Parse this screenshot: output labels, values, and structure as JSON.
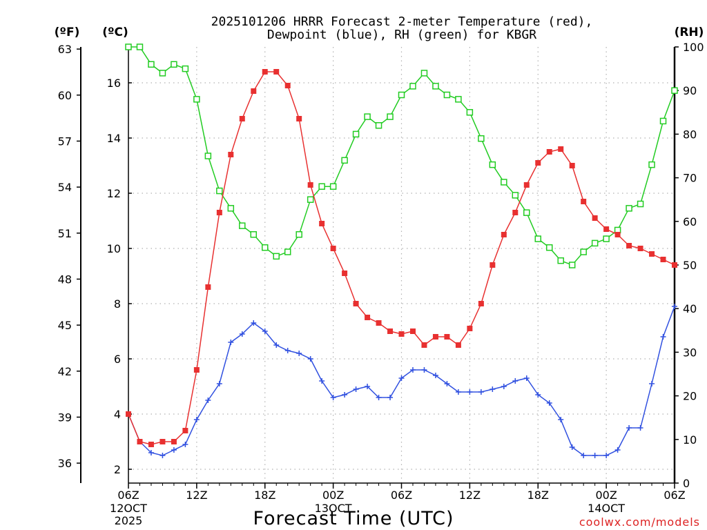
{
  "chart_data": {
    "type": "line",
    "title_line1": "2025101206 HRRR Forecast 2-meter Temperature (red),",
    "title_line2": "Dewpoint (blue), RH (green) for KBGR",
    "xlabel": "Forecast Time (UTC)",
    "credit": "coolwx.com/models",
    "unit_f": "(ºF)",
    "unit_c": "(ºC)",
    "unit_rh": "(RH)",
    "y_c_range": [
      1.5,
      17.3
    ],
    "y_rh_range": [
      0,
      100
    ],
    "f_ticks": [
      36,
      39,
      42,
      45,
      48,
      51,
      54,
      57,
      60,
      63
    ],
    "c_ticks": [
      2,
      4,
      6,
      8,
      10,
      12,
      14,
      16
    ],
    "rh_ticks": [
      0,
      10,
      20,
      30,
      40,
      50,
      60,
      70,
      80,
      90,
      100
    ],
    "x_ticks": [
      {
        "hour": 0,
        "label": "06Z",
        "sub1": "12OCT",
        "sub2": "2025"
      },
      {
        "hour": 6,
        "label": "12Z",
        "sub1": "",
        "sub2": ""
      },
      {
        "hour": 12,
        "label": "18Z",
        "sub1": "",
        "sub2": ""
      },
      {
        "hour": 18,
        "label": "00Z",
        "sub1": "13OCT",
        "sub2": ""
      },
      {
        "hour": 24,
        "label": "06Z",
        "sub1": "",
        "sub2": ""
      },
      {
        "hour": 30,
        "label": "12Z",
        "sub1": "",
        "sub2": ""
      },
      {
        "hour": 36,
        "label": "18Z",
        "sub1": "",
        "sub2": ""
      },
      {
        "hour": 42,
        "label": "00Z",
        "sub1": "14OCT",
        "sub2": ""
      },
      {
        "hour": 48,
        "label": "06Z",
        "sub1": "",
        "sub2": ""
      }
    ],
    "series": [
      {
        "name": "Temperature",
        "unit": "C",
        "axis": "left",
        "color": "#e83030",
        "marker": "filled-square",
        "values": [
          4.0,
          3.0,
          2.9,
          3.0,
          3.0,
          3.4,
          5.6,
          8.6,
          11.3,
          13.4,
          14.7,
          15.7,
          16.4,
          16.4,
          15.9,
          14.7,
          12.3,
          10.9,
          10.0,
          9.1,
          8.0,
          7.5,
          7.3,
          7.0,
          6.9,
          7.0,
          6.5,
          6.8,
          6.8,
          6.5,
          7.1,
          8.0,
          9.4,
          10.5,
          11.3,
          12.3,
          13.1,
          13.5,
          13.6,
          13.0,
          11.7,
          11.1,
          10.7,
          10.5,
          10.1,
          10.0,
          9.8,
          9.6,
          9.4
        ]
      },
      {
        "name": "Dewpoint",
        "unit": "C",
        "axis": "left",
        "color": "#3050e0",
        "marker": "plus",
        "values": [
          4.0,
          3.0,
          2.6,
          2.5,
          2.7,
          2.9,
          3.8,
          4.5,
          5.1,
          6.6,
          6.9,
          7.3,
          7.0,
          6.5,
          6.3,
          6.2,
          6.0,
          5.2,
          4.6,
          4.7,
          4.9,
          5.0,
          4.6,
          4.6,
          5.3,
          5.6,
          5.6,
          5.4,
          5.1,
          4.8,
          4.8,
          4.8,
          4.9,
          5.0,
          5.2,
          5.3,
          4.7,
          4.4,
          3.8,
          2.8,
          2.5,
          2.5,
          2.5,
          2.7,
          3.5,
          3.5,
          5.1,
          6.8,
          7.9
        ]
      },
      {
        "name": "RH",
        "unit": "%",
        "axis": "right",
        "color": "#22cc22",
        "marker": "open-square",
        "values": [
          100,
          100,
          96,
          94,
          96,
          95,
          88,
          75,
          67,
          63,
          59,
          57,
          54,
          52,
          53,
          57,
          65,
          68,
          68,
          74,
          80,
          84,
          82,
          84,
          89,
          91,
          94,
          91,
          89,
          88,
          85,
          79,
          73,
          69,
          66,
          62,
          56,
          54,
          51,
          50,
          53,
          55,
          56,
          58,
          63,
          64,
          73,
          83,
          90
        ]
      }
    ]
  }
}
